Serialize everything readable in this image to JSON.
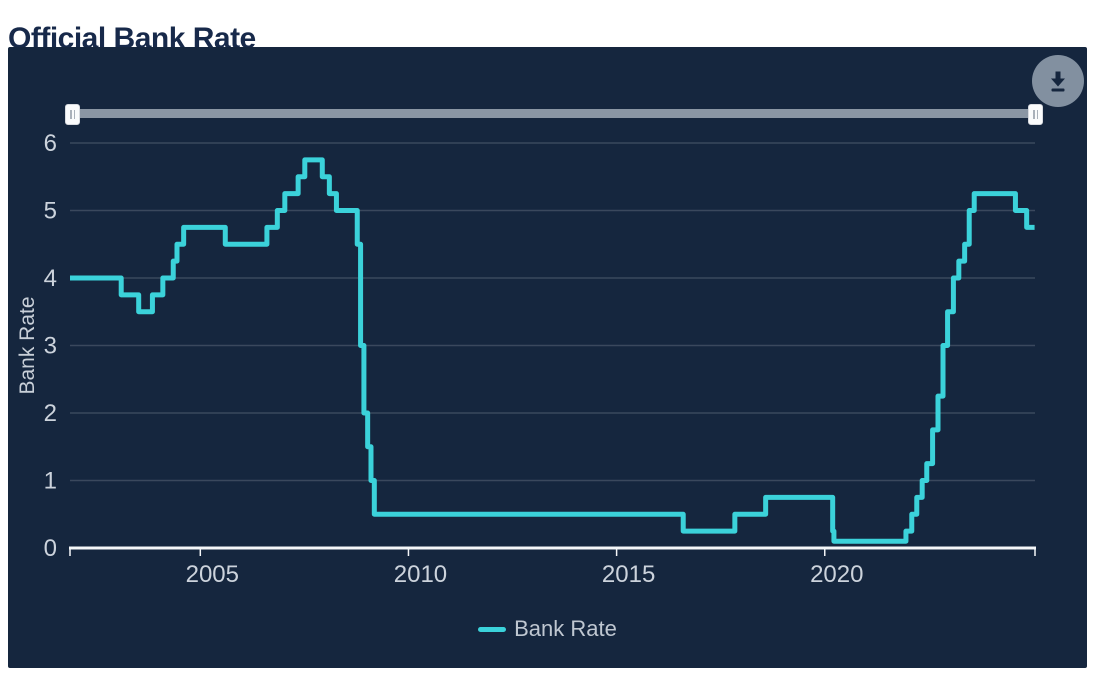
{
  "page": {
    "title": "Official Bank Rate",
    "background_color": "#ffffff",
    "title_color": "#17294a"
  },
  "toolbar": {
    "download_icon": "download-arrow-to-bar",
    "button_color": "#8290a0",
    "icon_color": "#15263E"
  },
  "range_slider": {
    "track_color": "#8a96a4",
    "handle_color": "#fafbfc",
    "handles": [
      "left",
      "right"
    ]
  },
  "chart": {
    "panel_bg": "#15263E",
    "grid_color": "rgba(255,255,255,0.16)",
    "axis_color": "#f4f6f8",
    "tick_label_color": "#ccd3dc",
    "axis_title_color": "#c8cfd8"
  },
  "chart_data": {
    "type": "line",
    "line_style": "step-after",
    "title": "Official Bank Rate",
    "xlabel": "",
    "ylabel": "Bank Rate",
    "x_ticks": [
      2005,
      2010,
      2015,
      2020
    ],
    "y_ticks": [
      0,
      1,
      2,
      3,
      4,
      5,
      6
    ],
    "xlim": [
      2001.87,
      2025.05
    ],
    "ylim": [
      0,
      6
    ],
    "grid": true,
    "legend": {
      "position": "bottom",
      "label": "Bank Rate"
    },
    "series": [
      {
        "name": "Bank Rate",
        "color": "#3BD2DA",
        "points": [
          [
            2001.87,
            4.0
          ],
          [
            2003.1,
            3.75
          ],
          [
            2003.52,
            3.5
          ],
          [
            2003.85,
            3.75
          ],
          [
            2004.1,
            4.0
          ],
          [
            2004.35,
            4.25
          ],
          [
            2004.44,
            4.5
          ],
          [
            2004.6,
            4.75
          ],
          [
            2005.6,
            4.5
          ],
          [
            2006.6,
            4.75
          ],
          [
            2006.85,
            5.0
          ],
          [
            2007.03,
            5.25
          ],
          [
            2007.35,
            5.5
          ],
          [
            2007.51,
            5.75
          ],
          [
            2007.93,
            5.5
          ],
          [
            2008.1,
            5.25
          ],
          [
            2008.27,
            5.0
          ],
          [
            2008.77,
            4.5
          ],
          [
            2008.85,
            3.0
          ],
          [
            2008.93,
            2.0
          ],
          [
            2009.02,
            1.5
          ],
          [
            2009.1,
            1.0
          ],
          [
            2009.18,
            0.5
          ],
          [
            2016.6,
            0.25
          ],
          [
            2017.84,
            0.5
          ],
          [
            2018.58,
            0.75
          ],
          [
            2020.19,
            0.25
          ],
          [
            2020.22,
            0.1
          ],
          [
            2021.95,
            0.25
          ],
          [
            2022.09,
            0.5
          ],
          [
            2022.21,
            0.75
          ],
          [
            2022.34,
            1.0
          ],
          [
            2022.45,
            1.25
          ],
          [
            2022.59,
            1.75
          ],
          [
            2022.72,
            2.25
          ],
          [
            2022.84,
            3.0
          ],
          [
            2022.95,
            3.5
          ],
          [
            2023.09,
            4.0
          ],
          [
            2023.22,
            4.25
          ],
          [
            2023.36,
            4.5
          ],
          [
            2023.47,
            5.0
          ],
          [
            2023.59,
            5.25
          ],
          [
            2024.58,
            5.0
          ],
          [
            2024.85,
            4.75
          ],
          [
            2025.04,
            4.75
          ]
        ]
      }
    ]
  }
}
